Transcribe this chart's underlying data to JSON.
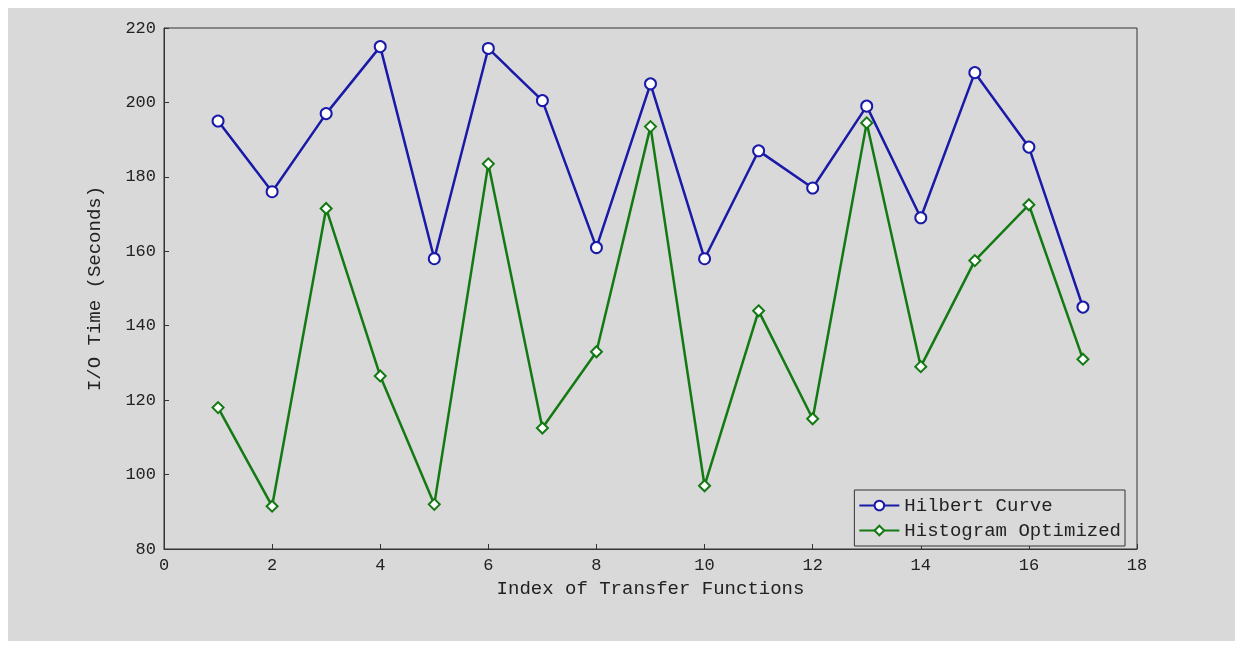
{
  "chart_data": {
    "type": "line",
    "xlabel": "Index of Transfer Functions",
    "ylabel": "I/O Time (Seconds)",
    "x": [
      1,
      2,
      3,
      4,
      5,
      6,
      7,
      8,
      9,
      10,
      11,
      12,
      13,
      14,
      15,
      16,
      17
    ],
    "series": [
      {
        "name": "Hilbert Curve",
        "color": "#1a1aa8",
        "marker": "circle",
        "values": [
          195,
          176,
          197,
          215,
          158,
          214.5,
          200.5,
          161,
          205,
          158,
          187,
          177,
          199,
          169,
          208,
          188,
          145
        ]
      },
      {
        "name": "Histogram Optimized",
        "color": "#137a13",
        "marker": "diamond",
        "values": [
          118,
          91.5,
          171.5,
          126.5,
          92,
          183.5,
          112.5,
          133,
          193.5,
          97,
          144,
          115,
          194.5,
          129,
          157.5,
          172.5,
          131
        ]
      }
    ],
    "xlim": [
      0,
      18
    ],
    "xticks": [
      0,
      2,
      4,
      6,
      8,
      10,
      12,
      14,
      16,
      18
    ],
    "ylim": [
      80,
      220
    ],
    "yticks": [
      80,
      100,
      120,
      140,
      160,
      180,
      200,
      220
    ],
    "grid": false,
    "legend": "bottom right",
    "line_style": "solid"
  }
}
